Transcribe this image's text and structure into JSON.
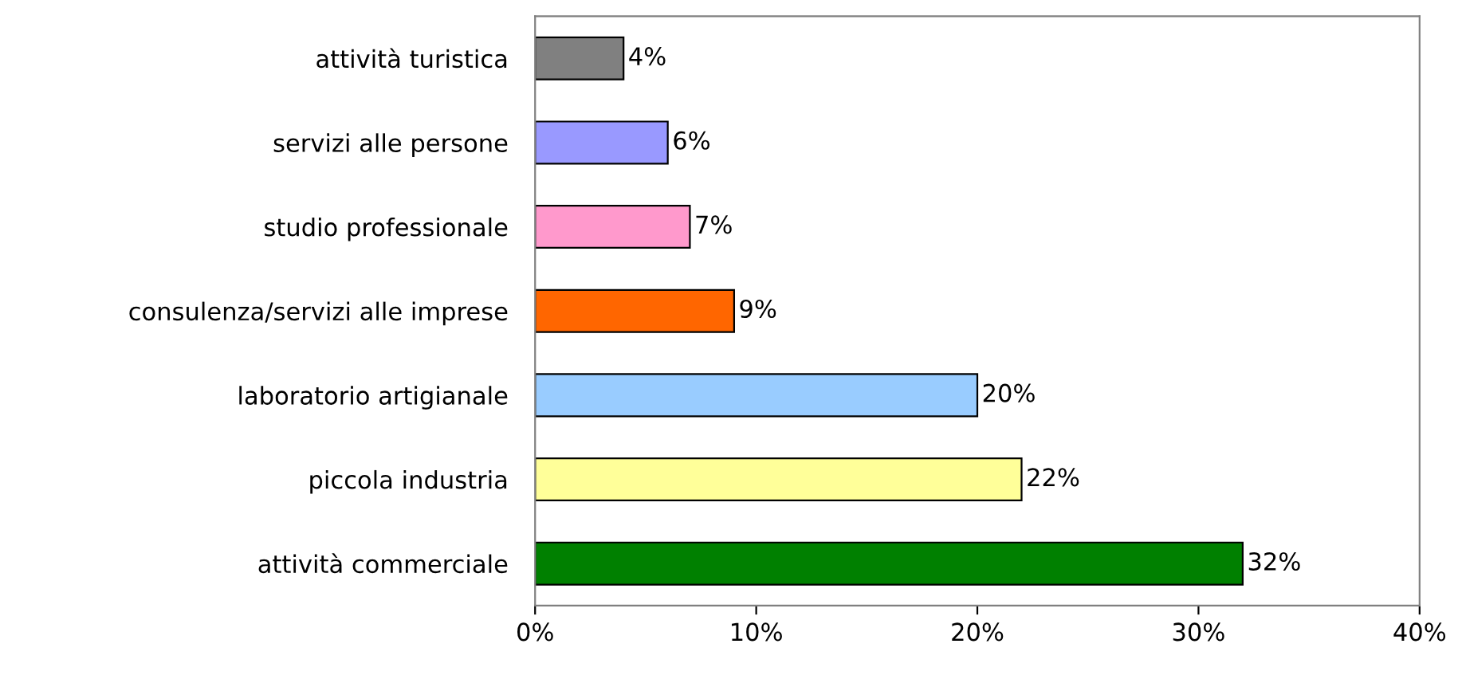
{
  "chart_data": {
    "type": "bar",
    "orientation": "horizontal",
    "categories": [
      "attività turistica",
      "servizi alle persone",
      "studio professionale",
      "consulenza/servizi alle imprese",
      "laboratorio artigianale",
      "piccola industria",
      "attività commerciale"
    ],
    "values": [
      4,
      6,
      7,
      9,
      20,
      22,
      32
    ],
    "colors": [
      "#808080",
      "#9999ff",
      "#ff99cc",
      "#ff6600",
      "#99ccff",
      "#ffff99",
      "#008000"
    ],
    "value_labels": [
      "4%",
      "6%",
      "7%",
      "9%",
      "20%",
      "22%",
      "32%"
    ],
    "xlim": [
      0,
      40
    ],
    "xticks": [
      {
        "value": 0,
        "label": "0%"
      },
      {
        "value": 10,
        "label": "10%"
      },
      {
        "value": 20,
        "label": "20%"
      },
      {
        "value": 30,
        "label": "30%"
      },
      {
        "value": 40,
        "label": "40%"
      }
    ],
    "grid": false,
    "legend": false
  }
}
